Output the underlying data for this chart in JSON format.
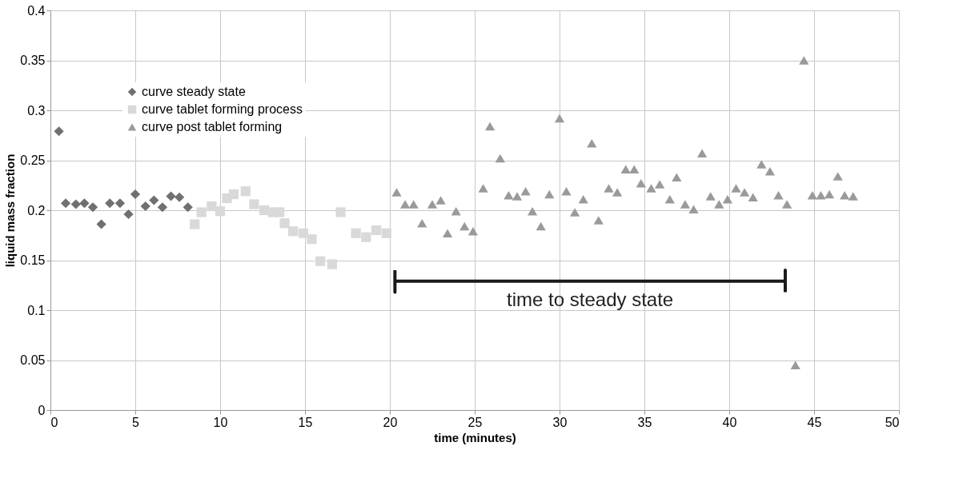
{
  "chart_data": {
    "type": "scatter",
    "xlabel": "time (minutes)",
    "ylabel": "liquid mass fraction",
    "xlim": [
      0,
      50
    ],
    "xticks": [
      0,
      5,
      10,
      15,
      20,
      25,
      30,
      35,
      40,
      45,
      50
    ],
    "ylim": [
      0,
      0.4
    ],
    "yticks": [
      0,
      0.05,
      0.1,
      0.15,
      0.2,
      0.25,
      0.3,
      0.35,
      0.4
    ],
    "grid": true,
    "legend": "top left",
    "series": [
      {
        "name": "curve steady state",
        "color": "#707070",
        "marker": "diamond",
        "x": [
          0.5,
          0.9,
          1.5,
          2.0,
          2.5,
          3.0,
          3.5,
          4.1,
          4.6,
          5.0,
          5.6,
          6.1,
          6.6,
          7.1,
          7.6,
          8.1
        ],
        "values": [
          0.279,
          0.207,
          0.206,
          0.207,
          0.203,
          0.186,
          0.207,
          0.207,
          0.196,
          0.216,
          0.204,
          0.21,
          0.203,
          0.214,
          0.213,
          0.203
        ]
      },
      {
        "name": "curve tablet forming process",
        "color": "#d9d9d9",
        "marker": "square",
        "x": [
          8.5,
          8.9,
          9.5,
          10.0,
          10.4,
          10.8,
          11.5,
          12.0,
          12.6,
          13.1,
          13.5,
          13.8,
          14.3,
          14.9,
          15.4,
          15.9,
          16.6,
          17.1,
          18.0,
          18.6,
          19.2,
          19.8
        ],
        "values": [
          0.186,
          0.198,
          0.204,
          0.199,
          0.212,
          0.216,
          0.219,
          0.206,
          0.2,
          0.198,
          0.198,
          0.187,
          0.179,
          0.177,
          0.171,
          0.149,
          0.146,
          0.198,
          0.177,
          0.173,
          0.18,
          0.177
        ]
      },
      {
        "name": "curve post tablet forming",
        "color": "#9a9a9a",
        "marker": "triangle",
        "x": [
          20.4,
          20.9,
          21.4,
          21.9,
          22.5,
          23.0,
          23.4,
          23.9,
          24.4,
          24.9,
          25.5,
          25.9,
          26.5,
          27.0,
          27.5,
          28.0,
          28.4,
          28.9,
          29.4,
          30.0,
          30.4,
          30.9,
          31.4,
          31.9,
          32.3,
          32.9,
          33.4,
          33.9,
          34.4,
          34.8,
          35.4,
          35.9,
          36.5,
          36.9,
          37.4,
          37.9,
          38.4,
          38.9,
          39.4,
          39.9,
          40.4,
          40.9,
          41.4,
          41.9,
          42.4,
          42.9,
          43.4,
          43.9,
          44.4,
          44.9,
          45.4,
          45.9,
          46.4,
          46.8,
          47.3
        ],
        "values": [
          0.218,
          0.206,
          0.206,
          0.187,
          0.206,
          0.21,
          0.177,
          0.199,
          0.184,
          0.179,
          0.222,
          0.284,
          0.252,
          0.215,
          0.214,
          0.219,
          0.199,
          0.184,
          0.216,
          0.292,
          0.219,
          0.198,
          0.211,
          0.267,
          0.19,
          0.222,
          0.218,
          0.241,
          0.241,
          0.227,
          0.222,
          0.226,
          0.211,
          0.233,
          0.206,
          0.201,
          0.257,
          0.214,
          0.206,
          0.211,
          0.222,
          0.218,
          0.213,
          0.246,
          0.239,
          0.215,
          0.206,
          0.045,
          0.35,
          0.215,
          0.215,
          0.216,
          0.234,
          0.215,
          0.214
        ]
      },
      {
        "type": "line",
        "color": "#1a1a1a",
        "line_style": "solid",
        "marker": "none",
        "x": [
          20.3,
          20.3,
          20.3,
          43.3,
          43.3,
          43.3
        ],
        "values": [
          0.14,
          0.118,
          0.129,
          0.129,
          0.14,
          0.118
        ]
      }
    ],
    "annotations": [
      "time to steady state"
    ]
  }
}
